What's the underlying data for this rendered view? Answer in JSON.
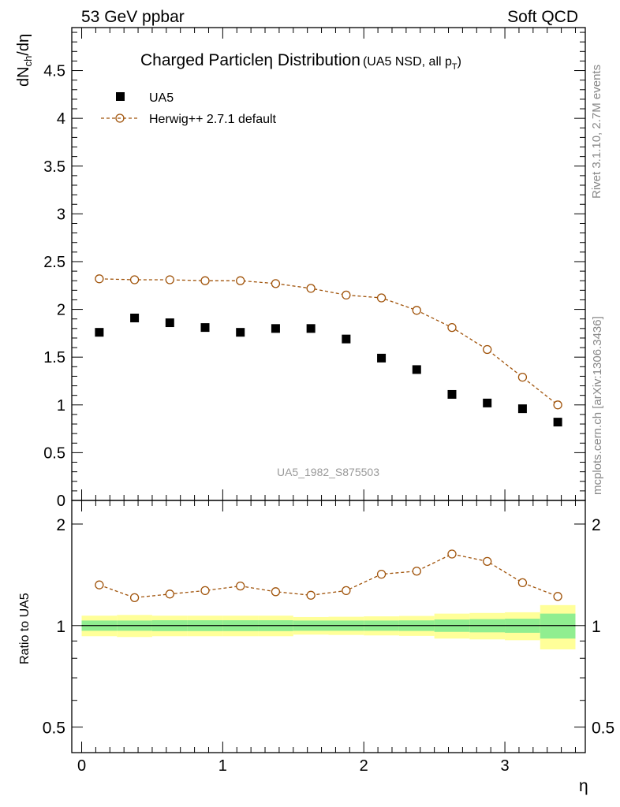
{
  "header": {
    "left": "53 GeV ppbar",
    "right": "Soft QCD"
  },
  "main_panel": {
    "title": "Charged Particleη Distribution",
    "title_suffix": "(UA5 NSD, all p",
    "title_suffix_sub": "T",
    "title_suffix_end": ")",
    "ylabel_main": "dN",
    "ylabel_sub": "ch",
    "ylabel_end": "/dη",
    "watermark": "UA5_1982_S875503",
    "y_ticks": [
      "0",
      "0.5",
      "1",
      "1.5",
      "2",
      "2.5",
      "3",
      "3.5",
      "4",
      "4.5"
    ]
  },
  "ratio_panel": {
    "ylabel": "Ratio to UA5",
    "y_ticks": [
      "0.5",
      "1",
      "2"
    ]
  },
  "x_axis": {
    "label": "η",
    "ticks": [
      "0",
      "1",
      "2",
      "3"
    ]
  },
  "side_text": {
    "top": "Rivet 3.1.10,  2.7M events",
    "bottom": "mcplots.cern.ch [arXiv:1306.3436]"
  },
  "legend": [
    {
      "label": "UA5",
      "marker": "square",
      "color": "#000000"
    },
    {
      "label": "Herwig++ 2.7.1 default",
      "marker": "open-circle",
      "color": "#a0530a"
    }
  ],
  "chart_data": [
    {
      "type": "scatter",
      "panel": "main",
      "x": [
        0.125,
        0.375,
        0.625,
        0.875,
        1.125,
        1.375,
        1.625,
        1.875,
        2.125,
        2.375,
        2.625,
        2.875,
        3.125,
        3.375
      ],
      "series": [
        {
          "name": "UA5",
          "values": [
            1.76,
            1.91,
            1.86,
            1.81,
            1.76,
            1.8,
            1.8,
            1.69,
            1.49,
            1.37,
            1.11,
            1.02,
            0.96,
            0.82
          ]
        },
        {
          "name": "Herwig++ 2.7.1 default",
          "values": [
            2.32,
            2.31,
            2.31,
            2.3,
            2.3,
            2.27,
            2.22,
            2.15,
            2.12,
            1.99,
            1.81,
            1.58,
            1.29,
            1.0
          ]
        }
      ],
      "xlim": [
        -0.07,
        3.57
      ],
      "ylim": [
        0,
        4.95
      ]
    },
    {
      "type": "line",
      "panel": "ratio",
      "scale": "log",
      "x": [
        0.125,
        0.375,
        0.625,
        0.875,
        1.125,
        1.375,
        1.625,
        1.875,
        2.125,
        2.375,
        2.625,
        2.875,
        3.125,
        3.375
      ],
      "series": [
        {
          "name": "Herwig++ 2.7.1 default",
          "values": [
            1.32,
            1.21,
            1.24,
            1.27,
            1.31,
            1.26,
            1.23,
            1.27,
            1.42,
            1.45,
            1.63,
            1.55,
            1.34,
            1.22
          ]
        }
      ],
      "bands": {
        "x_edges": [
          0,
          0.25,
          0.5,
          0.75,
          1.0,
          1.25,
          1.5,
          1.75,
          2.0,
          2.25,
          2.5,
          2.75,
          3.0,
          3.25,
          3.5
        ],
        "green_half_width": [
          0.035,
          0.035,
          0.037,
          0.037,
          0.037,
          0.037,
          0.035,
          0.035,
          0.035,
          0.036,
          0.042,
          0.045,
          0.048,
          0.085
        ],
        "yellow_half_width": [
          0.07,
          0.075,
          0.07,
          0.07,
          0.07,
          0.07,
          0.06,
          0.062,
          0.065,
          0.068,
          0.085,
          0.09,
          0.095,
          0.15
        ],
        "green_color": "#90ee90",
        "yellow_color": "#ffff99"
      },
      "ylim": [
        0.42,
        2.35
      ]
    }
  ]
}
